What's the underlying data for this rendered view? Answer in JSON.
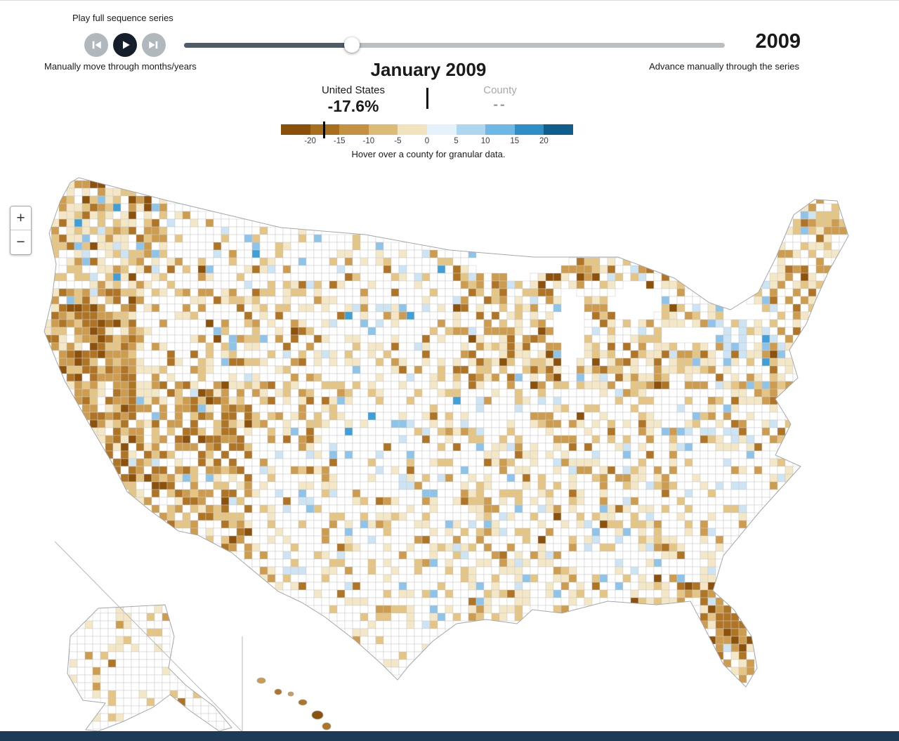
{
  "controls": {
    "play_sequence_label": "Play full sequence series",
    "manual_label": "Manually move through months/years",
    "advance_label": "Advance manually through the series",
    "year": "2009",
    "buttons": {
      "step_back": "skip-back",
      "play": "play",
      "step_forward": "skip-forward"
    },
    "slider": {
      "progress": 0.31
    }
  },
  "header": {
    "month_title": "January 2009",
    "national": {
      "label": "United States",
      "value": "-17.6%"
    },
    "county": {
      "label": "County",
      "value": "--"
    },
    "hint": "Hover over a county for granular data."
  },
  "legend": {
    "domain": [
      -25,
      25
    ],
    "ticks": [
      "-20",
      "-15",
      "-10",
      "-5",
      "0",
      "5",
      "10",
      "15",
      "20"
    ],
    "segment_colors": [
      "#8a5009",
      "#a96e1c",
      "#c3913f",
      "#dcbb76",
      "#f1e4bd",
      "#e6f2fa",
      "#aed6f1",
      "#6db8e4",
      "#2e8fc6",
      "#0f5e8e"
    ],
    "marker_value": -17.6
  },
  "map": {
    "zoom_in_label": "+",
    "zoom_out_label": "−",
    "county_palette": [
      "#ffffff",
      "#f4e7c6",
      "#e4c584",
      "#cd9c4e",
      "#b07425",
      "#8c510a",
      "#cde4f5",
      "#8fc4ea",
      "#3f9fd8"
    ],
    "outline_color": "#a3a8ad",
    "county_line_color": "#c9c9c9"
  },
  "colors": {
    "slider_fill": "#4d5c69",
    "slider_track": "#babfc4",
    "play_button": "#141f2b",
    "skip_button": "#b1b8bd",
    "bottom_bar": "#1d3a57"
  },
  "chart_data": {
    "type": "choropleth",
    "title": "January 2009",
    "region": "United States counties",
    "national_value_pct": -17.6,
    "county_value": null,
    "legend_ticks": [
      -20,
      -15,
      -10,
      -5,
      0,
      5,
      10,
      15,
      20
    ],
    "legend_domain": [
      -25,
      25
    ],
    "legend_note": "brown = negative %, blue = positive %"
  }
}
